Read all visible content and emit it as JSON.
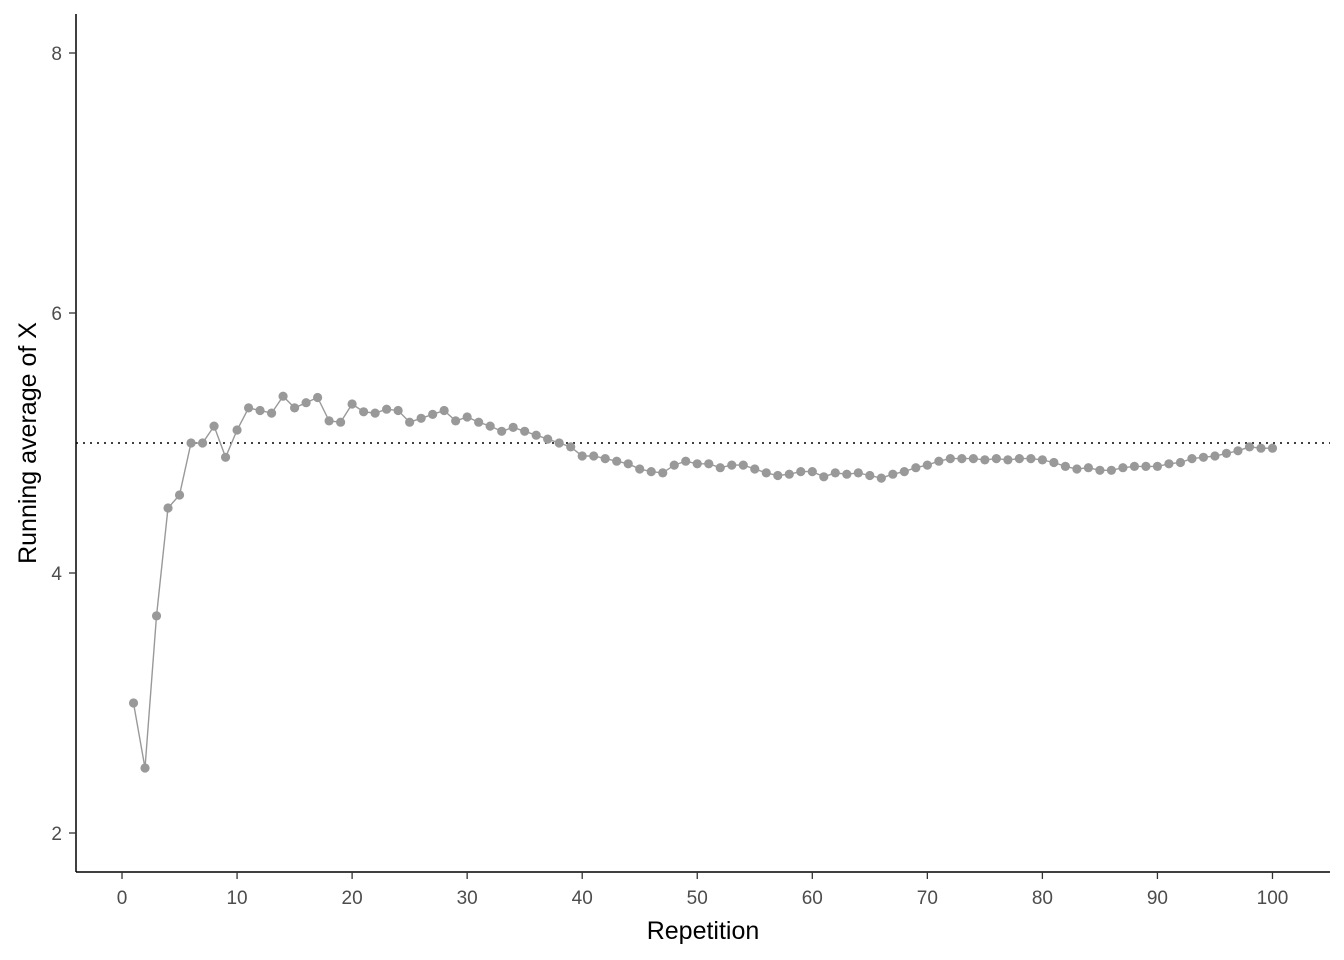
{
  "chart_data": {
    "type": "line",
    "title": "",
    "xlabel": "Repetition",
    "ylabel": "Running average of X",
    "xlim": [
      -4,
      105
    ],
    "ylim": [
      1.7,
      8.3
    ],
    "x_ticks": [
      0,
      10,
      20,
      30,
      40,
      50,
      60,
      70,
      80,
      90,
      100
    ],
    "y_ticks": [
      2,
      4,
      6,
      8
    ],
    "grid": false,
    "legend": "none",
    "reference_line": {
      "y": 5,
      "style": "dotted",
      "color": "#000000"
    },
    "series_color": "#999999",
    "series": [
      {
        "x": [
          1,
          2,
          3,
          4,
          5,
          6,
          7,
          8,
          9,
          10,
          11,
          12,
          13,
          14,
          15,
          16,
          17,
          18,
          19,
          20,
          21,
          22,
          23,
          24,
          25,
          26,
          27,
          28,
          29,
          30,
          31,
          32,
          33,
          34,
          35,
          36,
          37,
          38,
          39,
          40,
          41,
          42,
          43,
          44,
          45,
          46,
          47,
          48,
          49,
          50,
          51,
          52,
          53,
          54,
          55,
          56,
          57,
          58,
          59,
          60,
          61,
          62,
          63,
          64,
          65,
          66,
          67,
          68,
          69,
          70,
          71,
          72,
          73,
          74,
          75,
          76,
          77,
          78,
          79,
          80,
          81,
          82,
          83,
          84,
          85,
          86,
          87,
          88,
          89,
          90,
          91,
          92,
          93,
          94,
          95,
          96,
          97,
          98,
          99,
          100
        ],
        "values": [
          3.0,
          2.5,
          3.67,
          4.5,
          4.6,
          5.0,
          5.0,
          5.13,
          4.89,
          5.1,
          5.27,
          5.25,
          5.23,
          5.36,
          5.27,
          5.31,
          5.35,
          5.17,
          5.16,
          5.3,
          5.24,
          5.23,
          5.26,
          5.25,
          5.16,
          5.19,
          5.22,
          5.25,
          5.17,
          5.2,
          5.16,
          5.13,
          5.09,
          5.12,
          5.09,
          5.06,
          5.03,
          5.0,
          4.97,
          4.9,
          4.9,
          4.88,
          4.86,
          4.84,
          4.8,
          4.78,
          4.77,
          4.83,
          4.86,
          4.84,
          4.84,
          4.81,
          4.83,
          4.83,
          4.8,
          4.77,
          4.75,
          4.76,
          4.78,
          4.78,
          4.74,
          4.77,
          4.76,
          4.77,
          4.75,
          4.73,
          4.76,
          4.78,
          4.81,
          4.83,
          4.86,
          4.88,
          4.88,
          4.88,
          4.87,
          4.88,
          4.87,
          4.88,
          4.88,
          4.87,
          4.85,
          4.82,
          4.8,
          4.81,
          4.79,
          4.79,
          4.81,
          4.82,
          4.82,
          4.82,
          4.84,
          4.85,
          4.88,
          4.89,
          4.9,
          4.92,
          4.94,
          4.97,
          4.96,
          4.96
        ]
      }
    ]
  }
}
